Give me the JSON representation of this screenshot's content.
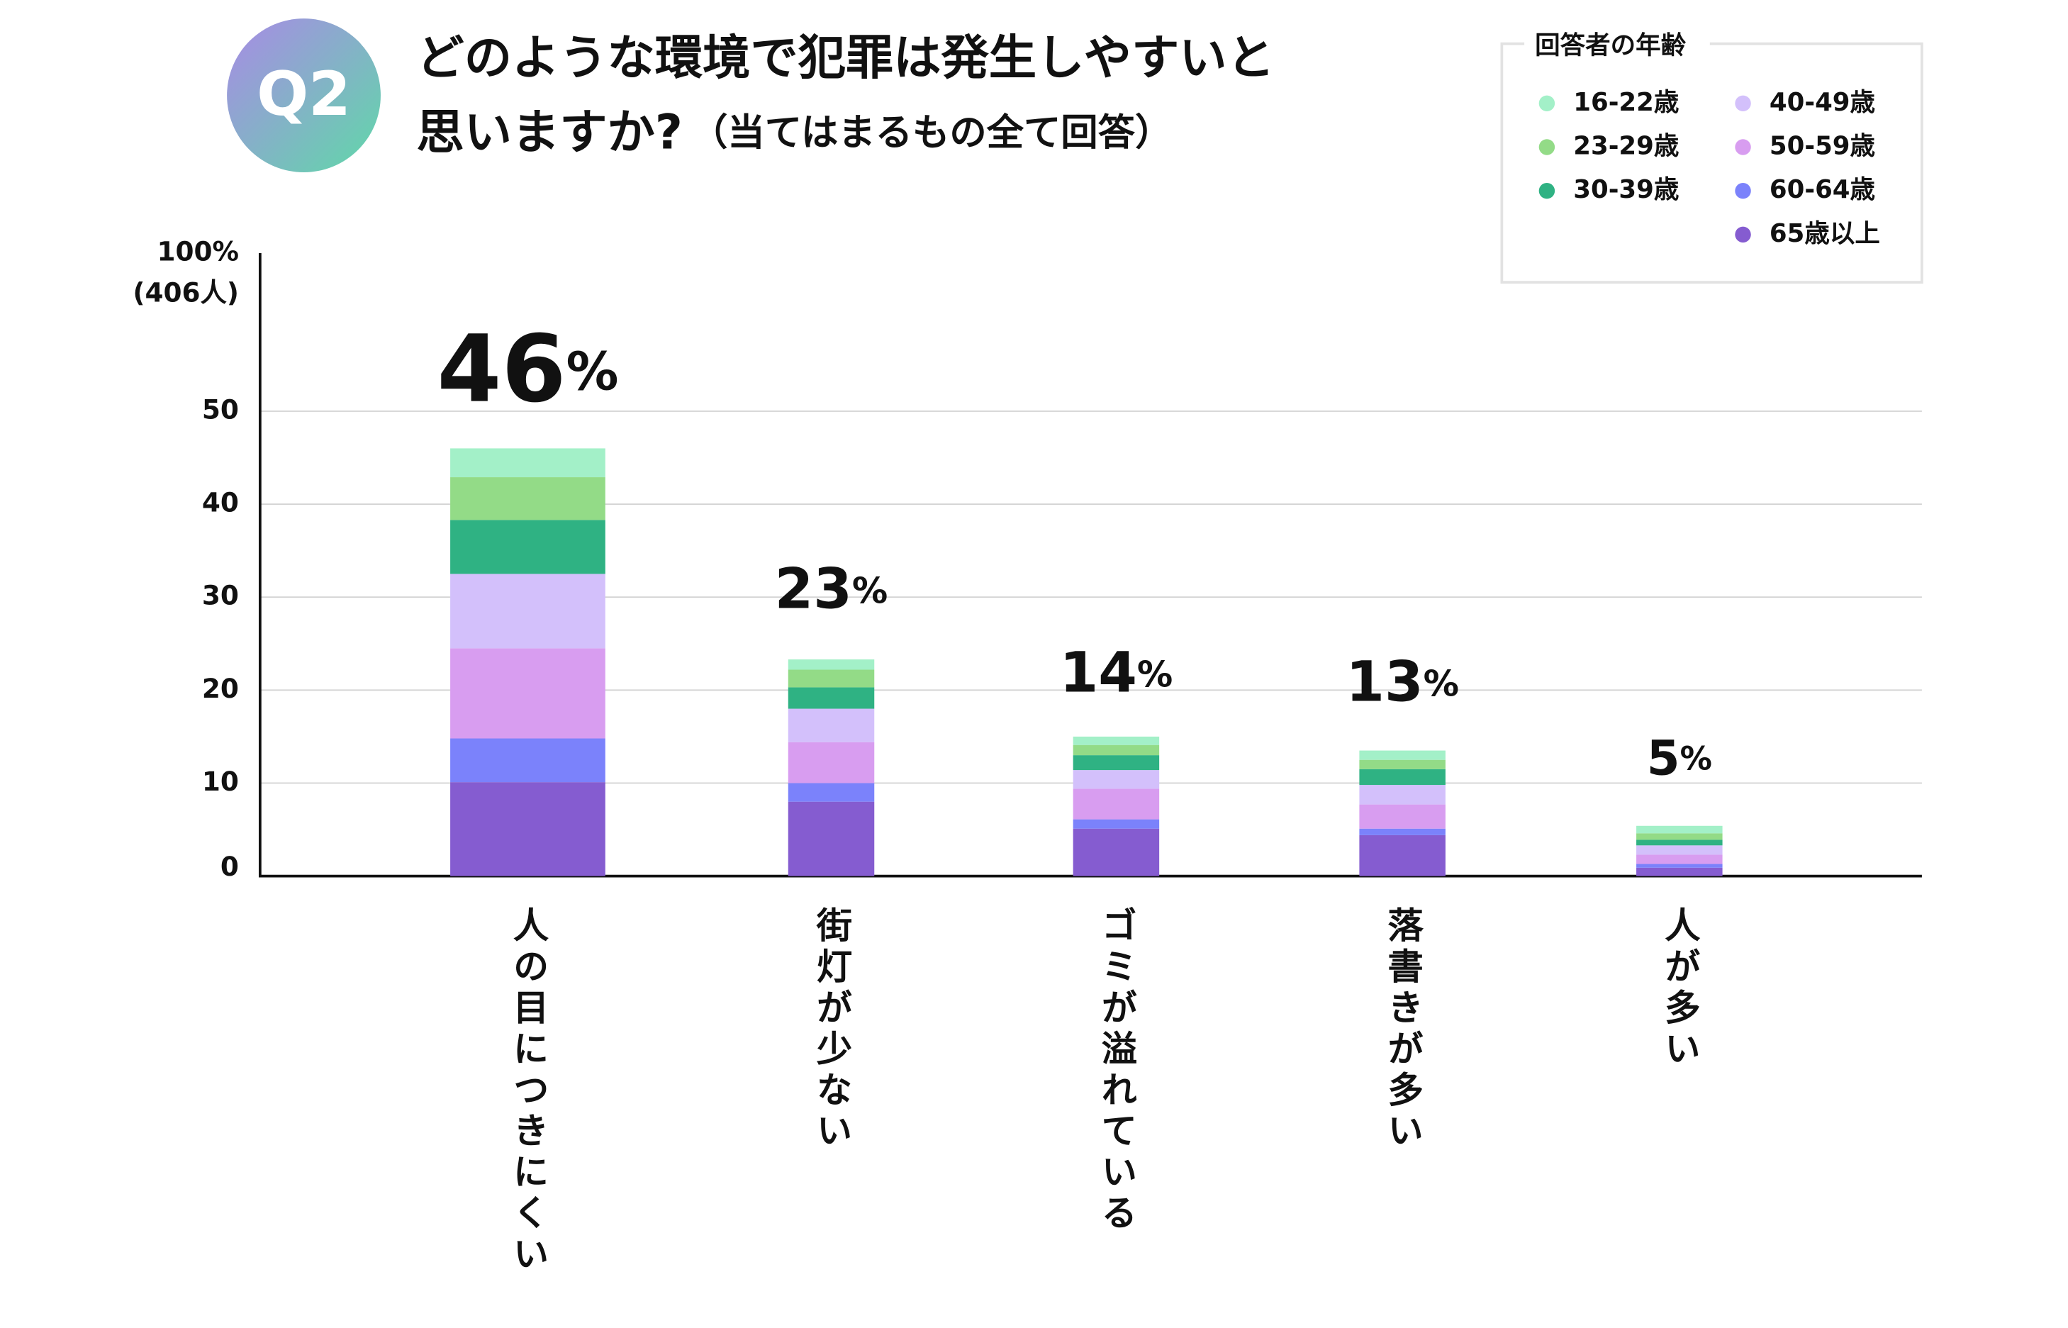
{
  "chart_data": {
    "type": "stacked_bar",
    "badge": "Q2",
    "title": [
      "どのような環境で犯罪は発生しやすいと",
      "思いますか?"
    ],
    "subtitle": "（当てはまるもの全て回答）",
    "legend_title": "回答者の年齢",
    "axis_top_label": [
      "100%",
      "(406人)"
    ],
    "categories": [
      "人の目につきにくい",
      "街灯が少ない",
      "ゴミが溢れている",
      "落書きが多い",
      "人が多い"
    ],
    "series": [
      {
        "name": "65歳以上",
        "color": "#855cd0",
        "values": [
          10.1,
          8.0,
          5.1,
          4.4,
          0.9
        ]
      },
      {
        "name": "60-64歳",
        "color": "#7b82fb",
        "values": [
          4.7,
          2.0,
          1.0,
          0.7,
          0.4
        ]
      },
      {
        "name": "50-59歳",
        "color": "#d89df0",
        "values": [
          9.7,
          4.4,
          3.3,
          2.6,
          1.0
        ]
      },
      {
        "name": "40-49歳",
        "color": "#d3c0fb",
        "values": [
          8.0,
          3.6,
          2.0,
          2.1,
          1.0
        ]
      },
      {
        "name": "30-39歳",
        "color": "#2fb283",
        "values": [
          5.8,
          2.3,
          1.6,
          1.7,
          0.6
        ]
      },
      {
        "name": "23-29歳",
        "color": "#93db87",
        "values": [
          4.6,
          1.9,
          1.1,
          1.0,
          0.7
        ]
      },
      {
        "name": "16-22歳",
        "color": "#a3f0c8",
        "values": [
          3.1,
          1.1,
          0.9,
          1.0,
          0.8
        ]
      }
    ],
    "totals": [
      46,
      23,
      14,
      13,
      5
    ],
    "total_labels": [
      "46%",
      "23%",
      "14%",
      "13%",
      "5%"
    ],
    "ylim": [
      0,
      67
    ],
    "yticks": [
      0,
      10,
      20,
      30,
      40,
      50
    ],
    "grid": true
  }
}
